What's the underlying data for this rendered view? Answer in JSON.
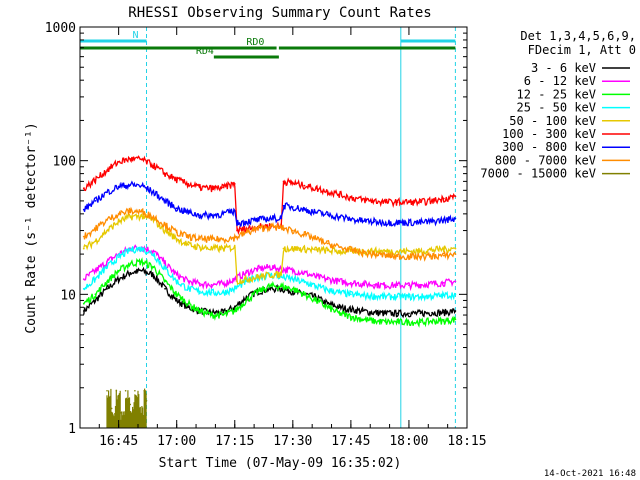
{
  "chart_data": {
    "type": "line",
    "title": "RHESSI Observing Summary Count Rates",
    "xlabel": "Start Time (07-May-09 16:35:02)",
    "ylabel": "Count Rate (s⁻¹ detector⁻¹)",
    "yscale": "log",
    "ylim": [
      1,
      1000
    ],
    "xlim": [
      16.5836,
      18.25
    ],
    "x_ticks": [
      "16:45",
      "17:00",
      "17:15",
      "17:30",
      "17:45",
      "18:00",
      "18:15"
    ],
    "y_ticks": [
      "1",
      "10",
      "100",
      "1000"
    ],
    "legend_header": [
      "Det 1,3,4,5,6,9,",
      "FDecim 1, Att 0"
    ],
    "legend_placement": "right",
    "footer_date": "14-Oct-2021 16:48",
    "flags": [
      {
        "label": "N",
        "color": "#22d3e6",
        "segments": [
          [
            16.5836,
            16.87
          ],
          [
            17.965,
            18.2
          ]
        ]
      },
      {
        "label": "RD0",
        "color": "#0a7a0a",
        "segments": [
          [
            16.5836,
            17.43
          ],
          [
            17.44,
            18.2
          ]
        ]
      },
      {
        "label": "RD4",
        "color": "#0a7a0a",
        "segments": [
          [
            17.16,
            17.44
          ]
        ]
      }
    ],
    "vertical_lines": [
      {
        "x": 16.5836,
        "style": "solid",
        "color": "#22d3e6"
      },
      {
        "x": 16.87,
        "style": "dashed",
        "color": "#22d3e6"
      },
      {
        "x": 17.965,
        "style": "solid",
        "color": "#22d3e6"
      },
      {
        "x": 18.2,
        "style": "dashed",
        "color": "#22d3e6"
      }
    ],
    "series": [
      {
        "name": "3 - 6 keV",
        "color": "#000000",
        "x": [
          16.6,
          16.65,
          16.7,
          16.75,
          16.8,
          16.85,
          16.9,
          16.95,
          17.0,
          17.05,
          17.1,
          17.15,
          17.2,
          17.25,
          17.3,
          17.35,
          17.4,
          17.45,
          17.5,
          17.55,
          17.6,
          17.65,
          17.7,
          17.75,
          17.8,
          17.85,
          17.9,
          17.95,
          18.0,
          18.05,
          18.1,
          18.15,
          18.2
        ],
        "y": [
          7.5,
          9,
          11,
          13,
          14.5,
          15,
          14,
          11,
          9,
          8,
          7.5,
          7.3,
          7.3,
          8,
          9.5,
          10.5,
          11,
          11,
          10.5,
          10,
          9.5,
          8.5,
          8,
          7.7,
          7.5,
          7.3,
          7.2,
          7.2,
          7.2,
          7.2,
          7.3,
          7.3,
          7.5
        ]
      },
      {
        "name": "6 - 12 keV",
        "color": "#ff00ff",
        "x": [
          16.6,
          16.65,
          16.7,
          16.75,
          16.8,
          16.85,
          16.9,
          16.95,
          17.0,
          17.05,
          17.1,
          17.15,
          17.2,
          17.25,
          17.3,
          17.35,
          17.4,
          17.45,
          17.5,
          17.55,
          17.6,
          17.65,
          17.7,
          17.75,
          17.8,
          17.85,
          17.9,
          17.95,
          18.0,
          18.05,
          18.1,
          18.15,
          18.2
        ],
        "y": [
          13,
          15,
          17.5,
          20,
          22,
          22.5,
          21,
          17,
          14,
          12.5,
          12,
          11.8,
          12,
          13,
          14.5,
          15.5,
          16,
          15.5,
          15,
          14.5,
          13.5,
          13,
          12.5,
          12.2,
          12,
          11.8,
          11.7,
          11.7,
          11.7,
          11.8,
          12,
          12.2,
          12.5
        ]
      },
      {
        "name": "12 - 25 keV",
        "color": "#00ff00",
        "x": [
          16.6,
          16.65,
          16.7,
          16.75,
          16.8,
          16.85,
          16.9,
          16.95,
          17.0,
          17.05,
          17.1,
          17.15,
          17.2,
          17.25,
          17.3,
          17.35,
          17.4,
          17.45,
          17.5,
          17.55,
          17.6,
          17.65,
          17.7,
          17.75,
          17.8,
          17.85,
          17.9,
          17.95,
          18.0,
          18.05,
          18.1,
          18.15,
          18.2
        ],
        "y": [
          8.5,
          10,
          12.5,
          15,
          17,
          17.5,
          16,
          12.5,
          10,
          8.5,
          7.5,
          7,
          7,
          7.5,
          9,
          10.5,
          11.5,
          11.5,
          11,
          10,
          9,
          8,
          7.2,
          6.8,
          6.5,
          6.3,
          6.2,
          6.2,
          6.2,
          6.2,
          6.3,
          6.3,
          6.5
        ]
      },
      {
        "name": "25 - 50 keV",
        "color": "#00ffff",
        "x": [
          16.6,
          16.65,
          16.7,
          16.75,
          16.8,
          16.85,
          16.9,
          16.95,
          17.0,
          17.05,
          17.1,
          17.15,
          17.2,
          17.25,
          17.3,
          17.35,
          17.4,
          17.45,
          17.5,
          17.55,
          17.6,
          17.65,
          17.7,
          17.75,
          17.8,
          17.85,
          17.9,
          17.95,
          18.0,
          18.05,
          18.1,
          18.15,
          18.2
        ],
        "y": [
          11,
          13,
          16,
          19,
          21.5,
          22,
          20,
          15.5,
          12.5,
          11,
          10.5,
          10.3,
          10.3,
          11,
          12.5,
          13.5,
          14,
          13.5,
          13,
          12.3,
          11.5,
          10.8,
          10.3,
          10,
          9.8,
          9.7,
          9.6,
          9.6,
          9.6,
          9.6,
          9.7,
          9.8,
          10
        ]
      },
      {
        "name": "50 - 100 keV",
        "color": "#e6c800",
        "x": [
          16.6,
          16.65,
          16.7,
          16.75,
          16.8,
          16.85,
          16.9,
          16.95,
          17.0,
          17.05,
          17.1,
          17.15,
          17.2,
          17.25,
          17.26,
          17.3,
          17.35,
          17.4,
          17.45,
          17.46,
          17.5,
          17.55,
          17.6,
          17.65,
          17.7,
          17.75,
          17.8,
          17.85,
          17.9,
          17.95,
          18.0,
          18.05,
          18.1,
          18.15,
          18.2
        ],
        "y": [
          22,
          25,
          30,
          35,
          38,
          38.5,
          36,
          30,
          26,
          23.5,
          22.5,
          22,
          22,
          22.5,
          12.5,
          13,
          13.5,
          14,
          14,
          22,
          22,
          21.8,
          21.5,
          21.3,
          21,
          21,
          21,
          21,
          21,
          21,
          21,
          21,
          21.5,
          21.8,
          22
        ]
      },
      {
        "name": "100 - 300 keV",
        "color": "#ff0000",
        "x": [
          16.6,
          16.65,
          16.7,
          16.75,
          16.8,
          16.85,
          16.9,
          16.95,
          17.0,
          17.05,
          17.1,
          17.15,
          17.2,
          17.25,
          17.26,
          17.3,
          17.35,
          17.4,
          17.45,
          17.46,
          17.5,
          17.55,
          17.6,
          17.65,
          17.7,
          17.75,
          17.8,
          17.85,
          17.9,
          17.95,
          18.0,
          18.05,
          18.1,
          18.15,
          18.2
        ],
        "y": [
          62,
          72,
          85,
          98,
          103,
          102,
          92,
          80,
          72,
          67,
          63,
          62,
          63,
          67,
          30,
          31,
          32,
          32.5,
          32,
          70,
          68,
          65,
          62,
          59,
          56,
          53,
          51,
          50,
          49,
          49,
          49,
          49,
          50,
          52,
          54
        ]
      },
      {
        "name": "300 - 800 keV",
        "color": "#0000ff",
        "x": [
          16.6,
          16.65,
          16.7,
          16.75,
          16.8,
          16.85,
          16.9,
          16.95,
          17.0,
          17.05,
          17.1,
          17.15,
          17.2,
          17.25,
          17.26,
          17.3,
          17.35,
          17.4,
          17.45,
          17.46,
          17.5,
          17.55,
          17.6,
          17.65,
          17.7,
          17.75,
          17.8,
          17.85,
          17.9,
          17.95,
          18.0,
          18.05,
          18.1,
          18.15,
          18.2
        ],
        "y": [
          43,
          50,
          58,
          64,
          66,
          65,
          58,
          50,
          44,
          41,
          39,
          39,
          40,
          42,
          34,
          35,
          36,
          37,
          37,
          46,
          45,
          43,
          41,
          39.5,
          38,
          36.5,
          35.5,
          35,
          34.5,
          34.5,
          34.5,
          34.5,
          35,
          36,
          37
        ]
      },
      {
        "name": "800 - 7000 keV",
        "color": "#ff8c00",
        "x": [
          16.6,
          16.65,
          16.7,
          16.75,
          16.8,
          16.85,
          16.9,
          16.95,
          17.0,
          17.05,
          17.1,
          17.15,
          17.2,
          17.25,
          17.3,
          17.35,
          17.4,
          17.45,
          17.5,
          17.55,
          17.6,
          17.65,
          17.7,
          17.75,
          17.8,
          17.85,
          17.9,
          17.95,
          18.0,
          18.05,
          18.1,
          18.15,
          18.2
        ],
        "y": [
          27,
          31,
          36,
          40,
          42,
          41.5,
          38,
          33,
          29,
          27,
          26,
          25.8,
          25.8,
          26.5,
          29,
          31,
          32,
          31.5,
          30,
          28,
          26,
          24,
          22.5,
          21.5,
          20.5,
          20,
          19.5,
          19.3,
          19.2,
          19.2,
          19.3,
          19.5,
          20
        ]
      },
      {
        "name": "7000 - 15000 keV",
        "color": "#808000",
        "x": [
          16.7,
          16.72,
          16.74,
          16.76,
          16.78,
          16.8,
          16.82,
          16.84,
          16.86,
          16.87
        ],
        "y": [
          1.9,
          1.4,
          1.9,
          1.3,
          1.9,
          1.5,
          1.9,
          1.4,
          1.9,
          1.6
        ]
      }
    ]
  }
}
